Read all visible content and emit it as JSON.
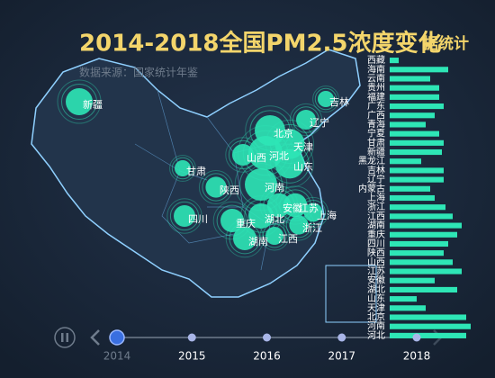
{
  "chart_data": [
    {
      "type": "map-bubble",
      "title": "2014-2018全国PM2.5浓度变化",
      "subtitle": "数据来源：国家统计年鉴",
      "categories": [
        "新疆",
        "吉林",
        "辽宁",
        "北京",
        "天津",
        "甘肃",
        "山西",
        "河北",
        "山东",
        "陕西",
        "河南",
        "安徽",
        "江苏",
        "上海",
        "四川",
        "重庆",
        "湖北",
        "浙江",
        "湖南",
        "江西"
      ],
      "values": [
        75,
        45,
        55,
        85,
        83,
        45,
        60,
        95,
        82,
        58,
        90,
        66,
        66,
        52,
        60,
        65,
        70,
        53,
        65,
        50
      ],
      "color": "#2ee6b6"
    },
    {
      "type": "bar",
      "title": "据统计",
      "categories": [
        "西藏",
        "海南",
        "云南",
        "贵州",
        "福建",
        "广东",
        "广西",
        "青海",
        "宁夏",
        "甘肃",
        "新疆",
        "黑龙江",
        "吉林",
        "辽宁",
        "内蒙古",
        "上海",
        "浙江",
        "江西",
        "湖南",
        "重庆",
        "四川",
        "陕西",
        "山西",
        "江苏",
        "安徽",
        "湖北",
        "山东",
        "天津",
        "北京",
        "河南",
        "河北"
      ],
      "values": [
        10,
        65,
        45,
        55,
        55,
        60,
        50,
        40,
        55,
        60,
        58,
        35,
        60,
        60,
        45,
        50,
        62,
        70,
        80,
        75,
        65,
        60,
        70,
        80,
        50,
        75,
        30,
        40,
        85,
        90,
        85
      ],
      "xlim": [
        0,
        100
      ],
      "color": "#2ee6b6"
    }
  ],
  "timeline": {
    "years": [
      2014,
      2015,
      2016,
      2017,
      2018
    ],
    "current": 0
  }
}
